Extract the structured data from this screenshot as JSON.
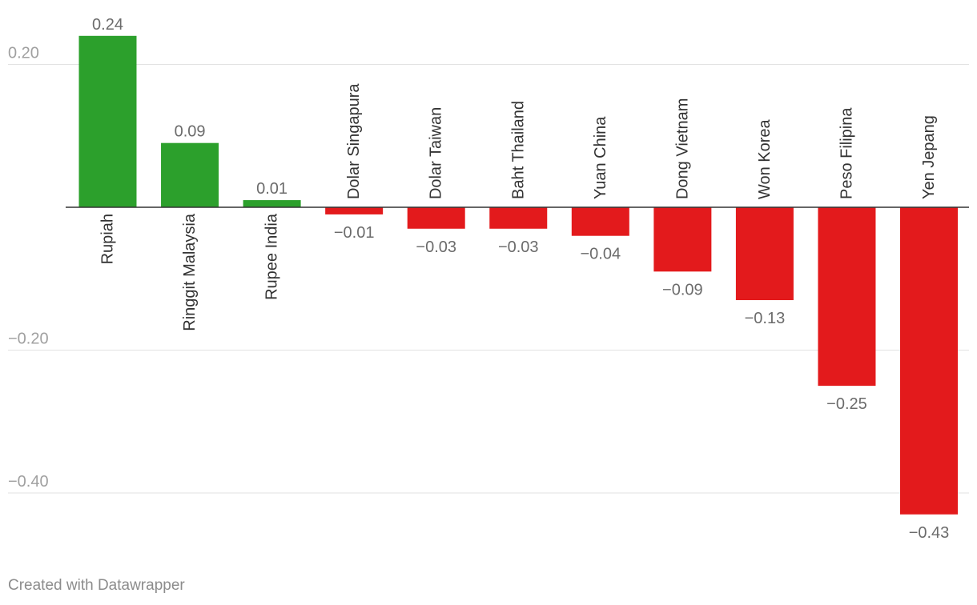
{
  "chart_data": {
    "type": "bar",
    "categories": [
      "Rupiah",
      "Ringgit Malaysia",
      "Rupee India",
      "Dolar Singapura",
      "Dolar Taiwan",
      "Baht Thailand",
      "Yuan China",
      "Dong Vietnam",
      "Won Korea",
      "Peso Filipina",
      "Yen Jepang"
    ],
    "values": [
      0.24,
      0.09,
      0.01,
      -0.01,
      -0.03,
      -0.03,
      -0.04,
      -0.09,
      -0.13,
      -0.25,
      -0.43
    ],
    "value_labels": [
      "0.24",
      "0.09",
      "0.01",
      "−0.01",
      "−0.03",
      "−0.03",
      "−0.04",
      "−0.09",
      "−0.13",
      "−0.25",
      "−0.43"
    ],
    "y_ticks": [
      0.2,
      -0.2,
      -0.4
    ],
    "y_tick_labels": [
      "0.20",
      "−0.20",
      "−0.40"
    ],
    "ylim": [
      -0.475,
      0.28
    ],
    "grid": true,
    "colors": {
      "positive": "#2ca02c",
      "negative": "#e31a1c",
      "grid": "#e2e2e2",
      "zero_line": "#333333",
      "tick_text": "#a0a0a0",
      "value_text": "#6b6b6b",
      "category_text": "#333333"
    }
  },
  "footer": {
    "text": "Created with Datawrapper"
  }
}
